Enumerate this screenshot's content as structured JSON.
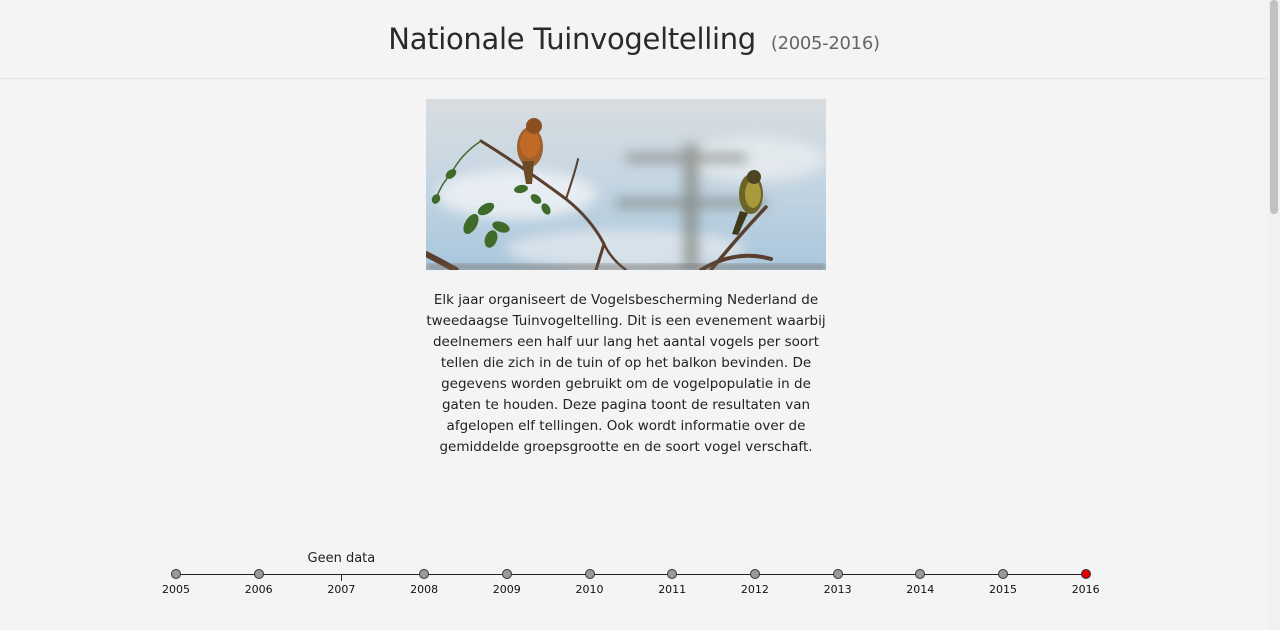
{
  "header": {
    "title": "Nationale Tuinvogeltelling",
    "years": "(2005-2016)"
  },
  "intro": {
    "text": "Elk jaar organiseert de Vogelsbescherming Nederland de tweedaagse Tuinvogeltelling. Dit is een evenement waarbij deelnemers een half uur lang het aantal vogels per soort tellen die zich in de tuin of op het balkon bevinden. De gegevens worden gebruikt om de vogelpopulatie in de gaten te houden. Deze pagina toont de resultaten van afgelopen elf tellingen. Ook wordt informatie over de gemiddelde groepsgrootte en de soort vogel verschaft."
  },
  "timeline": {
    "no_data_label": "Geen data",
    "years": [
      {
        "label": "2005",
        "has_data": true,
        "active": false
      },
      {
        "label": "2006",
        "has_data": true,
        "active": false
      },
      {
        "label": "2007",
        "has_data": false,
        "active": false
      },
      {
        "label": "2008",
        "has_data": true,
        "active": false
      },
      {
        "label": "2009",
        "has_data": true,
        "active": false
      },
      {
        "label": "2010",
        "has_data": true,
        "active": false
      },
      {
        "label": "2011",
        "has_data": true,
        "active": false
      },
      {
        "label": "2012",
        "has_data": true,
        "active": false
      },
      {
        "label": "2013",
        "has_data": true,
        "active": false
      },
      {
        "label": "2014",
        "has_data": true,
        "active": false
      },
      {
        "label": "2015",
        "has_data": true,
        "active": false
      },
      {
        "label": "2016",
        "has_data": true,
        "active": true
      }
    ],
    "colors": {
      "active": "#e00000",
      "inactive": "#9a9a9a"
    }
  }
}
